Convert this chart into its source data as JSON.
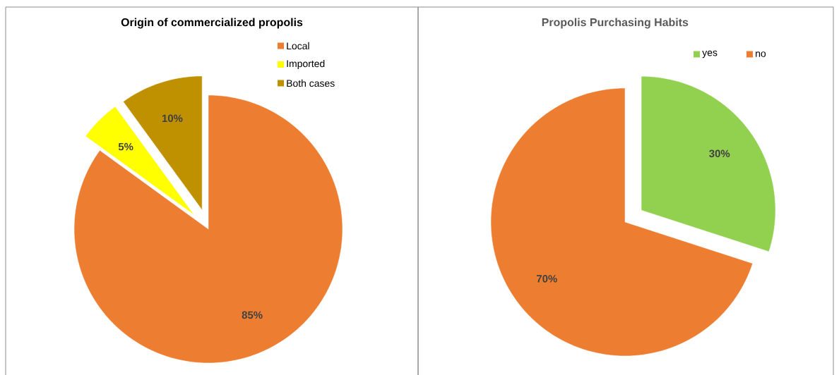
{
  "chart_data": [
    {
      "type": "pie",
      "title": "Origin of commercialized propolis",
      "categories": [
        "Local",
        "Imported",
        "Both cases"
      ],
      "values": [
        85,
        5,
        10
      ],
      "value_labels": [
        "85%",
        "5%",
        "10%"
      ],
      "colors": [
        "#ed7d31",
        "#ffff00",
        "#bf9000"
      ],
      "legend": "top right"
    },
    {
      "type": "pie",
      "title": "Propolis Purchasing Habits",
      "categories": [
        "yes",
        "no"
      ],
      "values": [
        30,
        70
      ],
      "value_labels": [
        "30%",
        "70%"
      ],
      "colors": [
        "#92d050",
        "#ed7d31"
      ],
      "legend": "top"
    }
  ]
}
